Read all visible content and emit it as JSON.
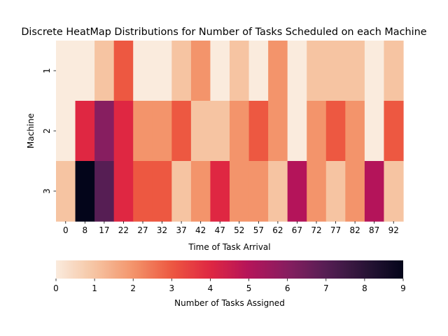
{
  "chart_data": {
    "type": "heatmap",
    "title": "Discrete HeatMap Distributions for Number of Tasks Scheduled on each Machine",
    "xlabel": "Time of Task Arrival",
    "ylabel": "Machine",
    "x_ticks": [
      "0",
      "8",
      "17",
      "22",
      "27",
      "32",
      "37",
      "42",
      "47",
      "52",
      "57",
      "62",
      "67",
      "72",
      "77",
      "82",
      "87",
      "92"
    ],
    "rows": [
      "1",
      "2",
      "3"
    ],
    "values": [
      [
        0,
        0,
        1,
        3,
        0,
        0,
        1,
        2,
        0,
        1,
        0,
        2,
        0,
        1,
        1,
        1,
        0,
        1
      ],
      [
        0,
        4,
        6,
        4,
        2,
        2,
        3,
        1,
        1,
        2,
        3,
        2,
        0,
        2,
        3,
        2,
        0,
        3
      ],
      [
        1,
        9,
        7,
        4,
        3,
        3,
        1,
        2,
        4,
        2,
        2,
        1,
        5,
        2,
        1,
        2,
        5,
        1
      ]
    ],
    "colorbar": {
      "label": "Number of Tasks Assigned",
      "min": 0,
      "max": 9,
      "ticks": [
        "0",
        "1",
        "2",
        "3",
        "4",
        "5",
        "6",
        "7",
        "8",
        "9"
      ],
      "orientation": "horizontal",
      "placement": "bottom"
    },
    "colormap": "rocket_r",
    "grid": false
  }
}
